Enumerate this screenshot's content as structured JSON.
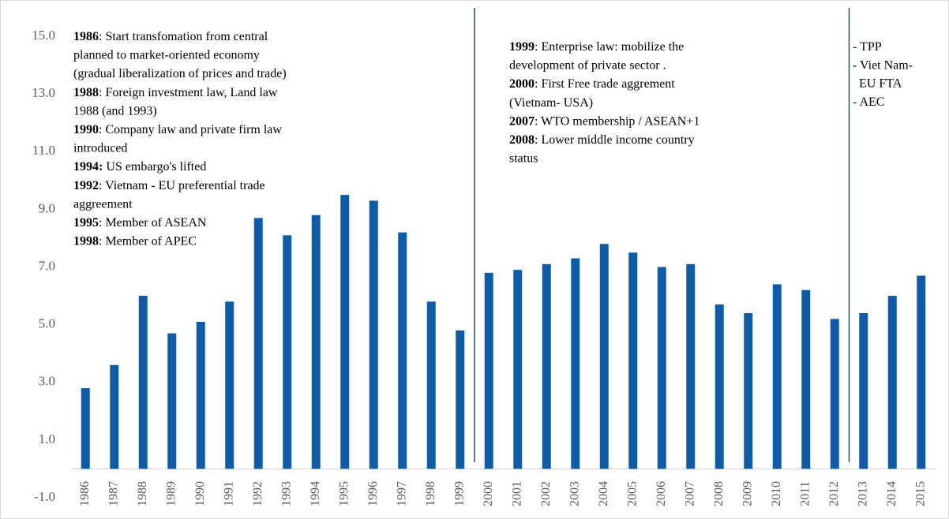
{
  "chart_data": {
    "type": "bar",
    "categories": [
      "1986",
      "1987",
      "1988",
      "1989",
      "1990",
      "1991",
      "1992",
      "1993",
      "1994",
      "1995",
      "1996",
      "1997",
      "1998",
      "1999",
      "2000",
      "2001",
      "2002",
      "2003",
      "2004",
      "2005",
      "2006",
      "2007",
      "2008",
      "2009",
      "2010",
      "2011",
      "2012",
      "2013",
      "2014",
      "2015"
    ],
    "values": [
      2.8,
      3.6,
      6.0,
      4.7,
      5.1,
      5.8,
      8.7,
      8.1,
      8.8,
      9.5,
      9.3,
      8.2,
      5.8,
      4.8,
      6.8,
      6.9,
      7.1,
      7.3,
      7.8,
      7.5,
      7.0,
      7.1,
      5.7,
      5.4,
      6.4,
      6.2,
      5.2,
      5.4,
      6.0,
      6.7
    ],
    "color": "#0e5ca8",
    "ylim": [
      -1,
      15
    ],
    "yticks": [
      {
        "value": -1,
        "label": "-1.0"
      },
      {
        "value": 1,
        "label": "1.0"
      },
      {
        "value": 3,
        "label": "3.0"
      },
      {
        "value": 5,
        "label": "5.0"
      },
      {
        "value": 7,
        "label": "7.0"
      },
      {
        "value": 9,
        "label": "9.0"
      },
      {
        "value": 11,
        "label": "11.0"
      },
      {
        "value": 13,
        "label": "13.0"
      },
      {
        "value": 15,
        "label": "15.0"
      }
    ],
    "dividers_after": [
      "1999",
      "2012"
    ],
    "annotations": [
      {
        "lines": [
          {
            "bold": "1986",
            "text": ": Start transfomation from central"
          },
          {
            "text": "planned to market-oriented economy"
          },
          {
            "text": "(gradual liberalization of prices and trade)"
          },
          {
            "bold": "1988",
            "text": ": Foreign investment law, Land law"
          },
          {
            "text": "1988 (and 1993)"
          },
          {
            "bold": "1990",
            "text": ": Company law and private firm law"
          },
          {
            "text": "introduced"
          },
          {
            "bold": "1994:",
            "text": " US embargo's lifted"
          },
          {
            "bold": "1992",
            "text": ": Vietnam - EU preferential trade"
          },
          {
            "text": "aggreement"
          },
          {
            "bold": "1995",
            "text": ": Member of ASEAN"
          },
          {
            "bold": "1998",
            "text": ": Member of APEC"
          }
        ]
      },
      {
        "lines": [
          {
            "bold": "1999",
            "text": ": Enterprise law: mobilize the"
          },
          {
            "text": "development of private sector ."
          },
          {
            "bold": "2000",
            "text": ": First Free trade aggrement"
          },
          {
            "text": "(Vietnam- USA)"
          },
          {
            "bold": "2007",
            "text": ": WTO membership / ASEAN+1"
          },
          {
            "bold": "2008",
            "text": ": Lower middle income country"
          },
          {
            "text": "status"
          }
        ]
      },
      {
        "lines": [
          {
            "text": "- TPP"
          },
          {
            "text": "- Viet Nam-"
          },
          {
            "text": "EU FTA"
          },
          {
            "text": "- AEC"
          }
        ]
      }
    ]
  }
}
